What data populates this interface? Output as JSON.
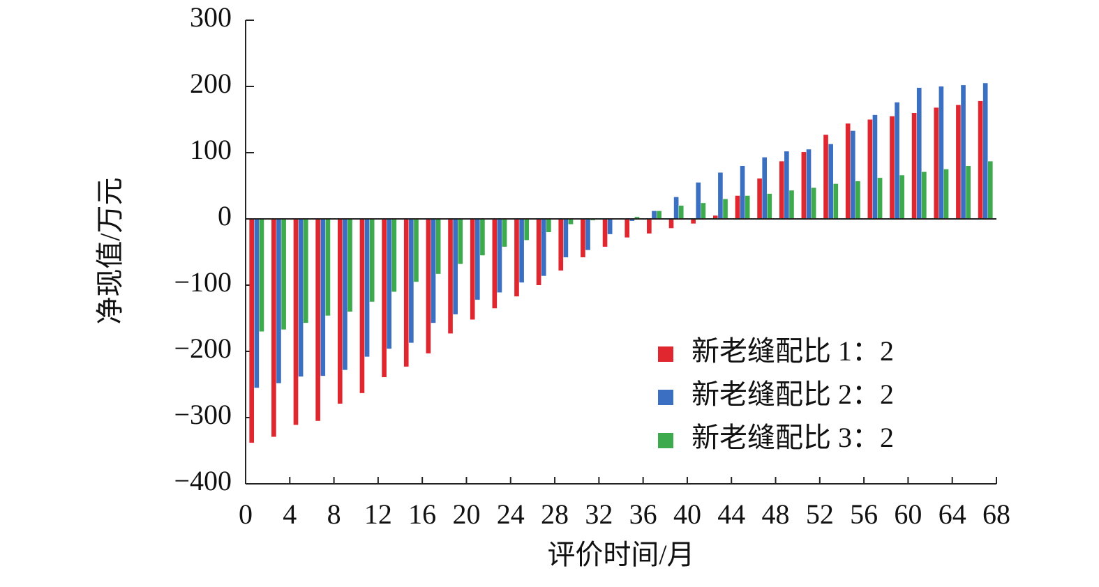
{
  "chart_data": {
    "type": "bar",
    "xlabel": "评价时间/月",
    "ylabel": "净现值/万元",
    "x": [
      1,
      3,
      5,
      7,
      9,
      11,
      13,
      15,
      17,
      19,
      21,
      23,
      25,
      27,
      29,
      31,
      33,
      35,
      37,
      39,
      41,
      43,
      45,
      47,
      49,
      51,
      53,
      55,
      57,
      59,
      61,
      63,
      65,
      67
    ],
    "series": [
      {
        "name": "新老缝配比 1：2",
        "color": "#e0262e",
        "values": [
          -338,
          -329,
          -311,
          -305,
          -279,
          -263,
          -239,
          -223,
          -203,
          -173,
          -152,
          -135,
          -117,
          -100,
          -78,
          -58,
          -42,
          -28,
          -22,
          -14,
          -7,
          5,
          35,
          61,
          87,
          101,
          127,
          144,
          150,
          155,
          160,
          168,
          172,
          178
        ]
      },
      {
        "name": "新老缝配比 2：2",
        "color": "#3a6fc1",
        "values": [
          -255,
          -248,
          -238,
          -237,
          -228,
          -208,
          -196,
          -187,
          -157,
          -144,
          -122,
          -111,
          -96,
          -86,
          -58,
          -47,
          -23,
          -3,
          12,
          33,
          55,
          70,
          80,
          93,
          102,
          105,
          113,
          133,
          157,
          176,
          198,
          200,
          202,
          205
        ]
      },
      {
        "name": "新老缝配比 3：2",
        "color": "#3daa4e",
        "values": [
          -170,
          -167,
          -157,
          -146,
          -140,
          -125,
          -110,
          -95,
          -83,
          -68,
          -55,
          -42,
          -32,
          -20,
          -8,
          -2,
          0,
          3,
          12,
          20,
          24,
          30,
          35,
          38,
          43,
          47,
          53,
          57,
          62,
          66,
          71,
          75,
          80,
          87
        ]
      }
    ],
    "xlim": [
      0,
      68
    ],
    "xticks": [
      0,
      4,
      8,
      12,
      16,
      20,
      24,
      28,
      32,
      36,
      40,
      44,
      48,
      52,
      56,
      60,
      64,
      68
    ],
    "ylim": [
      -400,
      300
    ],
    "yticks": [
      {
        "value": -400,
        "label": "−400"
      },
      {
        "value": -300,
        "label": "−300"
      },
      {
        "value": -200,
        "label": "−200"
      },
      {
        "value": -100,
        "label": "−100"
      },
      0,
      100,
      200,
      300
    ],
    "legend": "lower right"
  }
}
